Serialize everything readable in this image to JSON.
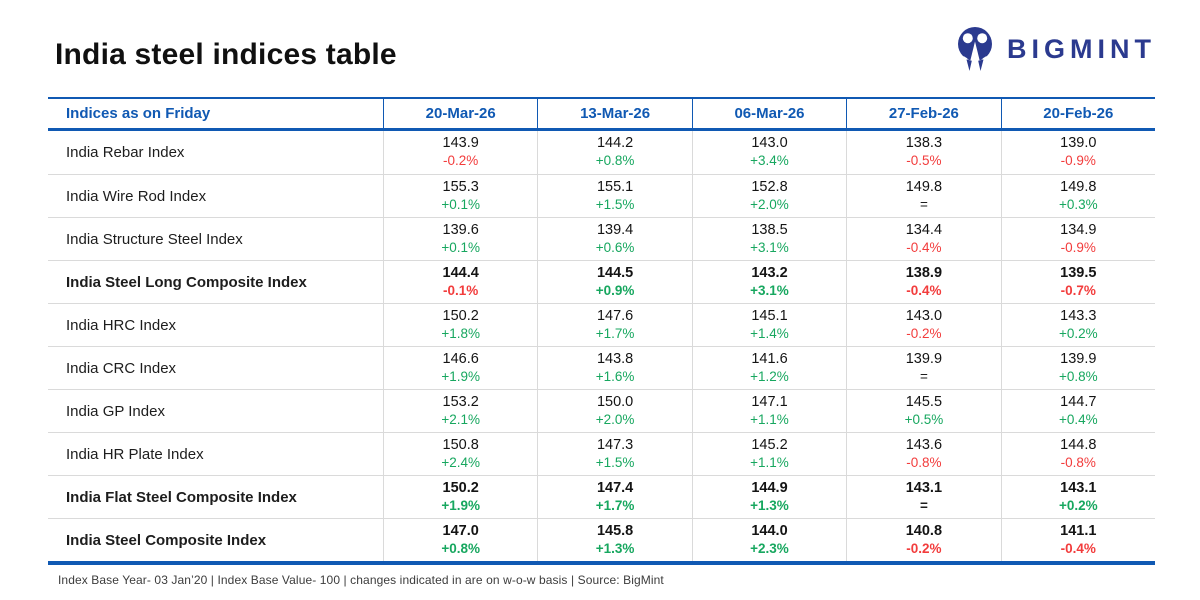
{
  "logo": {
    "brand": "BIGMINT",
    "icon": "bigmint-people-mark",
    "color": "#2b3a8f"
  },
  "colors": {
    "header_blue": "#1059b3",
    "positive_green": "#17a75f",
    "negative_red": "#f23c3c",
    "neutral_dark": "#1d1d1d",
    "row_divider": "#dadada"
  },
  "chart_data": {
    "type": "table",
    "title": "India steel indices table",
    "columns": [
      "Indices as on Friday",
      "20-Mar-26",
      "13-Mar-26",
      "06-Mar-26",
      "27-Feb-26",
      "20-Feb-26"
    ],
    "rows": [
      {
        "label": "India Rebar Index",
        "bold": false,
        "cells": [
          {
            "value": "143.9",
            "change": "-0.2%",
            "dir": "down"
          },
          {
            "value": "144.2",
            "change": "+0.8%",
            "dir": "up"
          },
          {
            "value": "143.0",
            "change": "+3.4%",
            "dir": "up"
          },
          {
            "value": "138.3",
            "change": "-0.5%",
            "dir": "down"
          },
          {
            "value": "139.0",
            "change": "-0.9%",
            "dir": "down"
          }
        ]
      },
      {
        "label": "India Wire Rod Index",
        "bold": false,
        "cells": [
          {
            "value": "155.3",
            "change": "+0.1%",
            "dir": "up"
          },
          {
            "value": "155.1",
            "change": "+1.5%",
            "dir": "up"
          },
          {
            "value": "152.8",
            "change": "+2.0%",
            "dir": "up"
          },
          {
            "value": "149.8",
            "change": "=",
            "dir": "flat"
          },
          {
            "value": "149.8",
            "change": "+0.3%",
            "dir": "up"
          }
        ]
      },
      {
        "label": "India Structure Steel Index",
        "bold": false,
        "cells": [
          {
            "value": "139.6",
            "change": "+0.1%",
            "dir": "up"
          },
          {
            "value": "139.4",
            "change": "+0.6%",
            "dir": "up"
          },
          {
            "value": "138.5",
            "change": "+3.1%",
            "dir": "up"
          },
          {
            "value": "134.4",
            "change": "-0.4%",
            "dir": "down"
          },
          {
            "value": "134.9",
            "change": "-0.9%",
            "dir": "down"
          }
        ]
      },
      {
        "label": "India Steel Long Composite Index",
        "bold": true,
        "cells": [
          {
            "value": "144.4",
            "change": "-0.1%",
            "dir": "down"
          },
          {
            "value": "144.5",
            "change": "+0.9%",
            "dir": "up"
          },
          {
            "value": "143.2",
            "change": "+3.1%",
            "dir": "up"
          },
          {
            "value": "138.9",
            "change": "-0.4%",
            "dir": "down"
          },
          {
            "value": "139.5",
            "change": "-0.7%",
            "dir": "down"
          }
        ]
      },
      {
        "label": "India HRC Index",
        "bold": false,
        "cells": [
          {
            "value": "150.2",
            "change": "+1.8%",
            "dir": "up"
          },
          {
            "value": "147.6",
            "change": "+1.7%",
            "dir": "up"
          },
          {
            "value": "145.1",
            "change": "+1.4%",
            "dir": "up"
          },
          {
            "value": "143.0",
            "change": "-0.2%",
            "dir": "down"
          },
          {
            "value": "143.3",
            "change": "+0.2%",
            "dir": "up"
          }
        ]
      },
      {
        "label": "India CRC Index",
        "bold": false,
        "cells": [
          {
            "value": "146.6",
            "change": "+1.9%",
            "dir": "up"
          },
          {
            "value": "143.8",
            "change": "+1.6%",
            "dir": "up"
          },
          {
            "value": "141.6",
            "change": "+1.2%",
            "dir": "up"
          },
          {
            "value": "139.9",
            "change": "=",
            "dir": "flat"
          },
          {
            "value": "139.9",
            "change": "+0.8%",
            "dir": "up"
          }
        ]
      },
      {
        "label": "India GP Index",
        "bold": false,
        "cells": [
          {
            "value": "153.2",
            "change": "+2.1%",
            "dir": "up"
          },
          {
            "value": "150.0",
            "change": "+2.0%",
            "dir": "up"
          },
          {
            "value": "147.1",
            "change": "+1.1%",
            "dir": "up"
          },
          {
            "value": "145.5",
            "change": "+0.5%",
            "dir": "up"
          },
          {
            "value": "144.7",
            "change": "+0.4%",
            "dir": "up"
          }
        ]
      },
      {
        "label": "India HR Plate Index",
        "bold": false,
        "cells": [
          {
            "value": "150.8",
            "change": "+2.4%",
            "dir": "up"
          },
          {
            "value": "147.3",
            "change": "+1.5%",
            "dir": "up"
          },
          {
            "value": "145.2",
            "change": "+1.1%",
            "dir": "up"
          },
          {
            "value": "143.6",
            "change": "-0.8%",
            "dir": "down"
          },
          {
            "value": "144.8",
            "change": "-0.8%",
            "dir": "down"
          }
        ]
      },
      {
        "label": "India Flat Steel Composite Index",
        "bold": true,
        "cells": [
          {
            "value": "150.2",
            "change": "+1.9%",
            "dir": "up"
          },
          {
            "value": "147.4",
            "change": "+1.7%",
            "dir": "up"
          },
          {
            "value": "144.9",
            "change": "+1.3%",
            "dir": "up"
          },
          {
            "value": "143.1",
            "change": "=",
            "dir": "flat"
          },
          {
            "value": "143.1",
            "change": "+0.2%",
            "dir": "up"
          }
        ]
      },
      {
        "label": "India Steel Composite Index",
        "bold": true,
        "cells": [
          {
            "value": "147.0",
            "change": "+0.8%",
            "dir": "up"
          },
          {
            "value": "145.8",
            "change": "+1.3%",
            "dir": "up"
          },
          {
            "value": "144.0",
            "change": "+2.3%",
            "dir": "up"
          },
          {
            "value": "140.8",
            "change": "-0.2%",
            "dir": "down"
          },
          {
            "value": "141.1",
            "change": "-0.4%",
            "dir": "down"
          }
        ]
      }
    ],
    "footnote": "Index Base Year- 03 Jan’20 | Index Base Value- 100 | changes indicated in are on w-o-w basis | Source: BigMint"
  }
}
